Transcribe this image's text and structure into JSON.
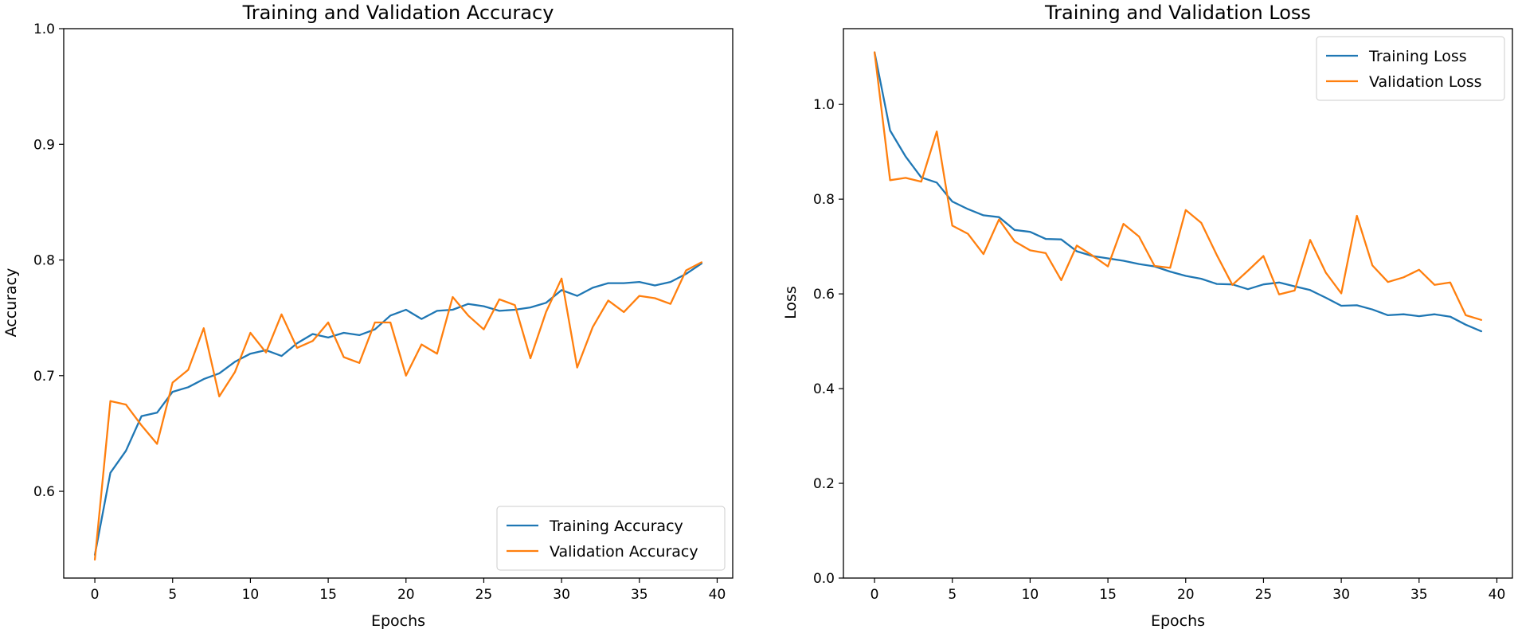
{
  "chart_data": [
    {
      "type": "line",
      "title": "Training and Validation Accuracy",
      "xlabel": "Epochs",
      "ylabel": "Accuracy",
      "xlim": [
        -2,
        41
      ],
      "ylim": [
        0.525,
        1.0
      ],
      "xticks": [
        0,
        5,
        10,
        15,
        20,
        25,
        30,
        35,
        40
      ],
      "yticks": [
        0.6,
        0.7,
        0.8,
        0.9,
        1.0
      ],
      "ytick_labels": [
        "0.6",
        "0.7",
        "0.8",
        "0.9",
        "1.0"
      ],
      "legend": "lower-right",
      "grid": false,
      "x": [
        0,
        1,
        2,
        3,
        4,
        5,
        6,
        7,
        8,
        9,
        10,
        11,
        12,
        13,
        14,
        15,
        16,
        17,
        18,
        19,
        20,
        21,
        22,
        23,
        24,
        25,
        26,
        27,
        28,
        29,
        30,
        31,
        32,
        33,
        34,
        35,
        36,
        37,
        38,
        39
      ],
      "series": [
        {
          "name": "Training Accuracy",
          "color": "#1f77b4",
          "values": [
            0.545,
            0.616,
            0.635,
            0.665,
            0.668,
            0.686,
            0.69,
            0.697,
            0.702,
            0.712,
            0.719,
            0.722,
            0.717,
            0.728,
            0.736,
            0.733,
            0.737,
            0.735,
            0.74,
            0.752,
            0.757,
            0.749,
            0.756,
            0.757,
            0.762,
            0.76,
            0.756,
            0.757,
            0.759,
            0.763,
            0.774,
            0.769,
            0.776,
            0.78,
            0.78,
            0.781,
            0.778,
            0.781,
            0.788,
            0.797
          ]
        },
        {
          "name": "Validation Accuracy",
          "color": "#ff7f0e",
          "values": [
            0.541,
            0.678,
            0.675,
            0.657,
            0.641,
            0.694,
            0.705,
            0.741,
            0.682,
            0.703,
            0.737,
            0.72,
            0.753,
            0.724,
            0.73,
            0.746,
            0.716,
            0.711,
            0.746,
            0.746,
            0.7,
            0.727,
            0.719,
            0.768,
            0.752,
            0.74,
            0.766,
            0.761,
            0.715,
            0.755,
            0.784,
            0.707,
            0.742,
            0.765,
            0.755,
            0.769,
            0.767,
            0.762,
            0.791,
            0.798
          ]
        }
      ]
    },
    {
      "type": "line",
      "title": "Training and Validation Loss",
      "xlabel": "Epochs",
      "ylabel": "Loss",
      "xlim": [
        -2,
        41
      ],
      "ylim": [
        0.0,
        1.16
      ],
      "xticks": [
        0,
        5,
        10,
        15,
        20,
        25,
        30,
        35,
        40
      ],
      "yticks": [
        0.0,
        0.2,
        0.4,
        0.6,
        0.8,
        1.0
      ],
      "ytick_labels": [
        "0.0",
        "0.2",
        "0.4",
        "0.6",
        "0.8",
        "1.0"
      ],
      "legend": "top-right",
      "grid": false,
      "x": [
        0,
        1,
        2,
        3,
        4,
        5,
        6,
        7,
        8,
        9,
        10,
        11,
        12,
        13,
        14,
        15,
        16,
        17,
        18,
        19,
        20,
        21,
        22,
        23,
        24,
        25,
        26,
        27,
        28,
        29,
        30,
        31,
        32,
        33,
        34,
        35,
        36,
        37,
        38,
        39
      ],
      "series": [
        {
          "name": "Training Loss",
          "color": "#1f77b4",
          "values": [
            1.11,
            0.945,
            0.89,
            0.846,
            0.835,
            0.795,
            0.779,
            0.766,
            0.762,
            0.735,
            0.731,
            0.716,
            0.715,
            0.69,
            0.68,
            0.675,
            0.67,
            0.663,
            0.658,
            0.647,
            0.638,
            0.632,
            0.621,
            0.62,
            0.61,
            0.62,
            0.624,
            0.616,
            0.608,
            0.592,
            0.575,
            0.576,
            0.567,
            0.555,
            0.557,
            0.553,
            0.557,
            0.552,
            0.535,
            0.521
          ]
        },
        {
          "name": "Validation Loss",
          "color": "#ff7f0e",
          "values": [
            1.11,
            0.84,
            0.845,
            0.837,
            0.943,
            0.744,
            0.727,
            0.684,
            0.757,
            0.711,
            0.692,
            0.686,
            0.629,
            0.702,
            0.681,
            0.658,
            0.748,
            0.721,
            0.659,
            0.655,
            0.777,
            0.75,
            0.682,
            0.619,
            0.649,
            0.68,
            0.599,
            0.607,
            0.714,
            0.645,
            0.601,
            0.765,
            0.66,
            0.625,
            0.635,
            0.651,
            0.619,
            0.624,
            0.555,
            0.545
          ]
        }
      ]
    }
  ]
}
